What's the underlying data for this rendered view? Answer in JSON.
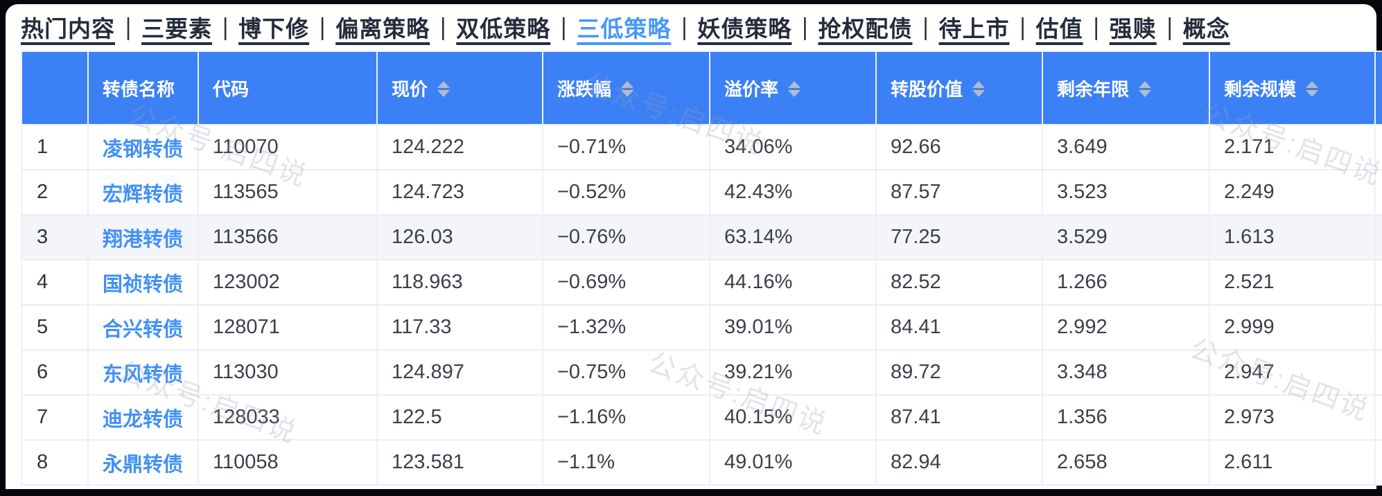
{
  "nav": {
    "separator": "|",
    "items": [
      {
        "label": "热门内容",
        "active": false
      },
      {
        "label": "三要素",
        "active": false
      },
      {
        "label": "博下修",
        "active": false
      },
      {
        "label": "偏离策略",
        "active": false
      },
      {
        "label": "双低策略",
        "active": false
      },
      {
        "label": "三低策略",
        "active": true
      },
      {
        "label": "妖债策略",
        "active": false
      },
      {
        "label": "抢权配债",
        "active": false
      },
      {
        "label": "待上市",
        "active": false
      },
      {
        "label": "估值",
        "active": false
      },
      {
        "label": "强赎",
        "active": false
      },
      {
        "label": "概念",
        "active": false
      }
    ]
  },
  "table": {
    "columns": [
      {
        "label": "",
        "sortable": false
      },
      {
        "label": "转债名称",
        "sortable": false
      },
      {
        "label": "代码",
        "sortable": false
      },
      {
        "label": "现价",
        "sortable": true
      },
      {
        "label": "涨跌幅",
        "sortable": true
      },
      {
        "label": "溢价率",
        "sortable": true
      },
      {
        "label": "转股价值",
        "sortable": true
      },
      {
        "label": "剩余年限",
        "sortable": true
      },
      {
        "label": "剩余规模",
        "sortable": true
      }
    ],
    "highlighted_row_index": 2,
    "rows": [
      {
        "index": "1",
        "name": "凌钢转债",
        "code": "110070",
        "price": "124.222",
        "change": "−0.71%",
        "premium": "34.06%",
        "conv_value": "92.66",
        "years": "3.649",
        "size": "2.171"
      },
      {
        "index": "2",
        "name": "宏辉转债",
        "code": "113565",
        "price": "124.723",
        "change": "−0.52%",
        "premium": "42.43%",
        "conv_value": "87.57",
        "years": "3.523",
        "size": "2.249"
      },
      {
        "index": "3",
        "name": "翔港转债",
        "code": "113566",
        "price": "126.03",
        "change": "−0.76%",
        "premium": "63.14%",
        "conv_value": "77.25",
        "years": "3.529",
        "size": "1.613"
      },
      {
        "index": "4",
        "name": "国祯转债",
        "code": "123002",
        "price": "118.963",
        "change": "−0.69%",
        "premium": "44.16%",
        "conv_value": "82.52",
        "years": "1.266",
        "size": "2.521"
      },
      {
        "index": "5",
        "name": "合兴转债",
        "code": "128071",
        "price": "117.33",
        "change": "−1.32%",
        "premium": "39.01%",
        "conv_value": "84.41",
        "years": "2.992",
        "size": "2.999"
      },
      {
        "index": "6",
        "name": "东风转债",
        "code": "113030",
        "price": "124.897",
        "change": "−0.75%",
        "premium": "39.21%",
        "conv_value": "89.72",
        "years": "3.348",
        "size": "2.947"
      },
      {
        "index": "7",
        "name": "迪龙转债",
        "code": "128033",
        "price": "122.5",
        "change": "−1.16%",
        "premium": "40.15%",
        "conv_value": "87.41",
        "years": "1.356",
        "size": "2.973"
      },
      {
        "index": "8",
        "name": "永鼎转债",
        "code": "110058",
        "price": "123.581",
        "change": "−1.1%",
        "premium": "49.01%",
        "conv_value": "82.94",
        "years": "2.658",
        "size": "2.611"
      }
    ]
  },
  "watermark": {
    "text": "公众号:启四说"
  },
  "colors": {
    "header_blue": "#3c80f6",
    "active_tab_blue": "#4697f9",
    "link_blue": "#4190f7",
    "row_highlight": "#f3f5f9",
    "nav_text": "#242c3c",
    "data_text": "#3a3f49"
  }
}
